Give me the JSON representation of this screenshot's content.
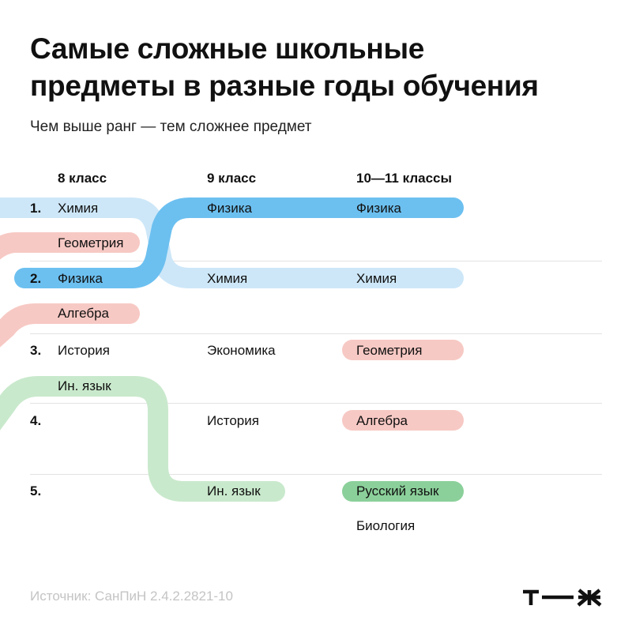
{
  "title_lines": [
    "Самые сложные школьные",
    "предметы в разные годы обучения"
  ],
  "subtitle": "Чем выше ранг — тем сложнее предмет",
  "columns": [
    "8 класс",
    "9 класс",
    "10—11 классы"
  ],
  "ranks": [
    "1.",
    "2.",
    "3.",
    "4.",
    "5."
  ],
  "grade8": [
    "Химия",
    "Геометрия",
    "Физика",
    "Алгебра",
    "История",
    "Ин. язык"
  ],
  "grade9": [
    "Физика",
    "Химия",
    "Экономика",
    "История",
    "Ин. язык"
  ],
  "grade10_11": [
    "Физика",
    "Химия",
    "Геометрия",
    "Алгебра",
    "Русский язык",
    "Биология"
  ],
  "colors": {
    "physics": "#6cc0f0",
    "chemistry": "#cde7f8",
    "math": "#f7c9c4",
    "language": "#c9e9cc",
    "russian": "#8bd09a",
    "separator": "#e3e3e3",
    "source": "#c4c4c4"
  },
  "source": "Источник: СанПиН 2.4.2.2821-10",
  "logo_icon": "tzh-logo-icon"
}
